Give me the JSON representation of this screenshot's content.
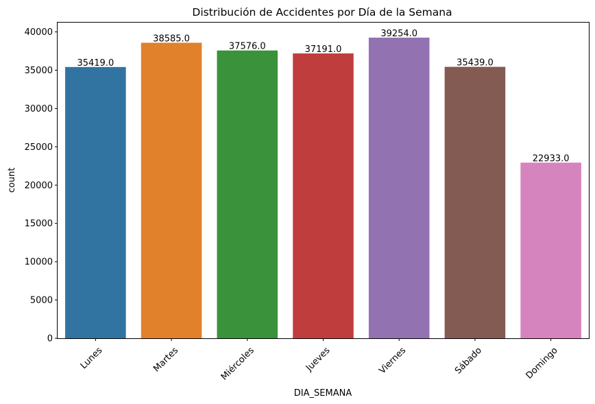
{
  "chart_data": {
    "type": "bar",
    "title": "Distribución de Accidentes por Día de la Semana",
    "xlabel": "DIA_SEMANA",
    "ylabel": "count",
    "categories": [
      "Lunes",
      "Martes",
      "Miércoles",
      "Jueves",
      "Viernes",
      "Sábado",
      "Domingo"
    ],
    "values": [
      35419,
      38585,
      37576,
      37191,
      39254,
      35439,
      22933
    ],
    "value_labels": [
      "35419.0",
      "38585.0",
      "37576.0",
      "37191.0",
      "39254.0",
      "35439.0",
      "22933.0"
    ],
    "colors": [
      "#3274a1",
      "#e1812c",
      "#3a923a",
      "#c03d3e",
      "#9372b2",
      "#845b53",
      "#d684bd"
    ],
    "yticks": [
      0,
      5000,
      10000,
      15000,
      20000,
      25000,
      30000,
      35000,
      40000
    ],
    "ytick_labels": [
      "0",
      "5000",
      "10000",
      "15000",
      "20000",
      "25000",
      "30000",
      "35000",
      "40000"
    ],
    "ylim": [
      0,
      41216.7
    ],
    "xtick_rotation": 45,
    "grid": false,
    "legend": false
  }
}
